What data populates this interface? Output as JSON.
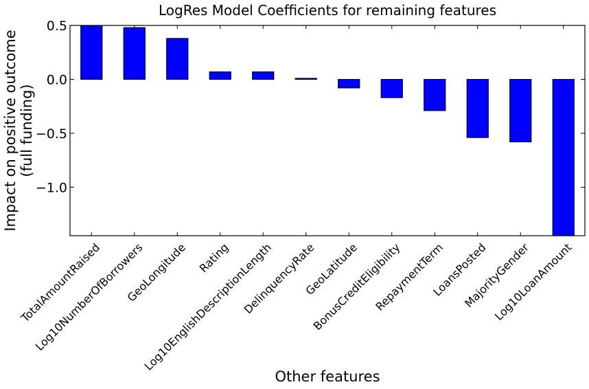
{
  "chart_data": {
    "type": "bar",
    "title": "LogRes Model Coefficients for remaining features",
    "xlabel": "Other features",
    "ylabel_lines": [
      "Impact on positive outcome",
      "(full funding)"
    ],
    "categories": [
      "TotalAmountRaised",
      "Log10NumberOfBorrowers",
      "GeoLongitude",
      "Rating",
      "Log10EnglishDescriptionLength",
      "DelinquencyRate",
      "GeoLatitude",
      "BonusCreditEligibility",
      "RepaymentTerm",
      "LoansPosted",
      "MajorityGender",
      "Log10LoanAmount"
    ],
    "values": [
      0.51,
      0.48,
      0.38,
      0.07,
      0.07,
      0.01,
      -0.08,
      -0.17,
      -0.29,
      -0.54,
      -0.58,
      -1.45
    ],
    "ylim": [
      -1.45,
      0.5
    ],
    "yticks": [
      0.5,
      0.0,
      -0.5,
      -1.0
    ],
    "ytick_labels": [
      "0.5",
      "0.0",
      "−0.5",
      "−1.0"
    ],
    "bar_color": "#0000ff",
    "grid": false,
    "legend": "none"
  }
}
